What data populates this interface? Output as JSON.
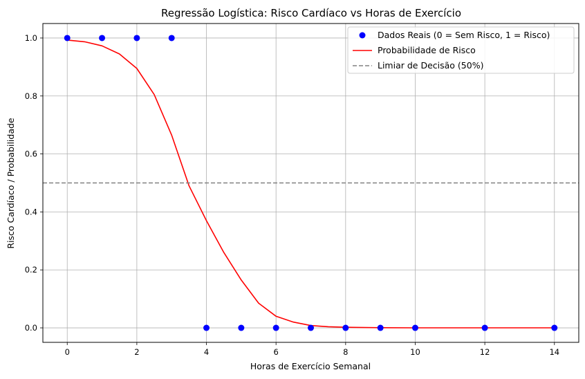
{
  "chart_data": {
    "type": "scatter",
    "title": "Regressão Logística: Risco Cardíaco vs Horas de Exercício",
    "xlabel": "Horas de Exercício Semanal",
    "ylabel": "Risco Cardíaco / Probabilidade",
    "xlim": [
      -0.7,
      14.7
    ],
    "ylim": [
      -0.05,
      1.05
    ],
    "grid": true,
    "legend_position": "top-right",
    "xticks": [
      0,
      2,
      4,
      6,
      8,
      10,
      12,
      14
    ],
    "xtick_labels": [
      "0",
      "2",
      "4",
      "6",
      "8",
      "10",
      "12",
      "14"
    ],
    "yticks": [
      0.0,
      0.2,
      0.4,
      0.6,
      0.8,
      1.0
    ],
    "ytick_labels": [
      "0.0",
      "0.2",
      "0.4",
      "0.6",
      "0.8",
      "1.0"
    ],
    "series": [
      {
        "name": "Dados Reais (0 = Sem Risco, 1 = Risco)",
        "kind": "scatter",
        "color": "#0000ff",
        "x": [
          0,
          1,
          2,
          3,
          4,
          5,
          6,
          7,
          8,
          9,
          10,
          12,
          14
        ],
        "y": [
          1,
          1,
          1,
          1,
          0,
          0,
          0,
          0,
          0,
          0,
          0,
          0,
          0
        ]
      },
      {
        "name": "Probabilidade de Risco",
        "kind": "line",
        "color": "#ff0000",
        "x": [
          0,
          0.5,
          1,
          1.5,
          2,
          2.5,
          3,
          3.5,
          4,
          4.5,
          5,
          5.5,
          6,
          6.5,
          7,
          7.5,
          8,
          9,
          10,
          11,
          12,
          13,
          14
        ],
        "y": [
          0.993,
          0.987,
          0.973,
          0.945,
          0.895,
          0.805,
          0.665,
          0.49,
          0.37,
          0.26,
          0.165,
          0.085,
          0.04,
          0.02,
          0.008,
          0.004,
          0.002,
          0.0005,
          0.0001,
          0,
          0,
          0,
          0
        ]
      },
      {
        "name": "Limiar de Decisão (50%)",
        "kind": "hline",
        "color": "#808080",
        "y": 0.5
      }
    ]
  }
}
